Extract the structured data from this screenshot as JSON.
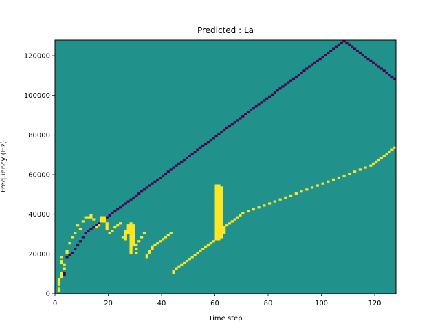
{
  "chart_data": {
    "type": "heatmap",
    "title": "Predicted : La",
    "xlabel": "Time step",
    "ylabel": "Frequency (Hz)",
    "xlim": [
      0,
      128
    ],
    "ylim": [
      0,
      128000
    ],
    "xticks": [
      0,
      20,
      40,
      60,
      80,
      100,
      120
    ],
    "yticks": [
      0,
      20000,
      40000,
      60000,
      80000,
      100000,
      120000
    ],
    "colors": {
      "background": "#21918c",
      "high": "#fde725",
      "low": "#440154"
    },
    "high_cells": [
      [
        1,
        1
      ],
      [
        1,
        2
      ],
      [
        1,
        4
      ],
      [
        1,
        5
      ],
      [
        1,
        6
      ],
      [
        1,
        7
      ],
      [
        2,
        8
      ],
      [
        2,
        9
      ],
      [
        2,
        10
      ],
      [
        2,
        15
      ],
      [
        2,
        16
      ],
      [
        2,
        18
      ],
      [
        3,
        12
      ],
      [
        3,
        14
      ],
      [
        4,
        20
      ],
      [
        4,
        21
      ],
      [
        5,
        25
      ],
      [
        6,
        28
      ],
      [
        7,
        30
      ],
      [
        8,
        34
      ],
      [
        9,
        32
      ],
      [
        10,
        36
      ],
      [
        11,
        38
      ],
      [
        12,
        38
      ],
      [
        13,
        38
      ],
      [
        13,
        39
      ],
      [
        14,
        37
      ],
      [
        15,
        33
      ],
      [
        16,
        34
      ],
      [
        17,
        36
      ],
      [
        17,
        37
      ],
      [
        17,
        38
      ],
      [
        18,
        36
      ],
      [
        18,
        37
      ],
      [
        18,
        38
      ],
      [
        19,
        32
      ],
      [
        19,
        33
      ],
      [
        19,
        34
      ],
      [
        19,
        35
      ],
      [
        20,
        30
      ],
      [
        21,
        31
      ],
      [
        22,
        33
      ],
      [
        23,
        34
      ],
      [
        24,
        35
      ],
      [
        25,
        28
      ],
      [
        26,
        27
      ],
      [
        26,
        28
      ],
      [
        26,
        29
      ],
      [
        26,
        30
      ],
      [
        26,
        31
      ],
      [
        27,
        30
      ],
      [
        27,
        31
      ],
      [
        27,
        32
      ],
      [
        27,
        33
      ],
      [
        27,
        34
      ],
      [
        28,
        20
      ],
      [
        28,
        21
      ],
      [
        28,
        22
      ],
      [
        28,
        23
      ],
      [
        28,
        24
      ],
      [
        28,
        25
      ],
      [
        28,
        26
      ],
      [
        28,
        27
      ],
      [
        28,
        28
      ],
      [
        28,
        29
      ],
      [
        28,
        30
      ],
      [
        28,
        31
      ],
      [
        28,
        32
      ],
      [
        28,
        33
      ],
      [
        28,
        34
      ],
      [
        28,
        35
      ],
      [
        29,
        24
      ],
      [
        29,
        25
      ],
      [
        29,
        26
      ],
      [
        29,
        27
      ],
      [
        29,
        28
      ],
      [
        29,
        29
      ],
      [
        29,
        30
      ],
      [
        29,
        31
      ],
      [
        29,
        32
      ],
      [
        29,
        33
      ],
      [
        29,
        34
      ],
      [
        30,
        20
      ],
      [
        30,
        22
      ],
      [
        30,
        24
      ],
      [
        31,
        26
      ],
      [
        32,
        28
      ],
      [
        33,
        30
      ],
      [
        34,
        18
      ],
      [
        34,
        19
      ],
      [
        35,
        20
      ],
      [
        35,
        21
      ],
      [
        36,
        22
      ],
      [
        36,
        23
      ],
      [
        37,
        24
      ],
      [
        38,
        25
      ],
      [
        39,
        26
      ],
      [
        40,
        27
      ],
      [
        41,
        28
      ],
      [
        42,
        29
      ],
      [
        43,
        30
      ],
      [
        44,
        10
      ],
      [
        44,
        11
      ],
      [
        45,
        12
      ],
      [
        46,
        13
      ],
      [
        47,
        14
      ],
      [
        48,
        15
      ],
      [
        49,
        16
      ],
      [
        50,
        17
      ],
      [
        51,
        18
      ],
      [
        52,
        19
      ],
      [
        53,
        20
      ],
      [
        54,
        21
      ],
      [
        55,
        22
      ],
      [
        56,
        23
      ],
      [
        57,
        24
      ],
      [
        58,
        25
      ],
      [
        59,
        26
      ],
      [
        60,
        27
      ],
      [
        60,
        28
      ],
      [
        60,
        29
      ],
      [
        60,
        30
      ],
      [
        60,
        31
      ],
      [
        60,
        32
      ],
      [
        60,
        33
      ],
      [
        60,
        34
      ],
      [
        60,
        35
      ],
      [
        60,
        36
      ],
      [
        60,
        37
      ],
      [
        60,
        38
      ],
      [
        60,
        39
      ],
      [
        60,
        40
      ],
      [
        60,
        41
      ],
      [
        60,
        42
      ],
      [
        60,
        43
      ],
      [
        60,
        44
      ],
      [
        60,
        45
      ],
      [
        60,
        46
      ],
      [
        60,
        47
      ],
      [
        60,
        48
      ],
      [
        60,
        49
      ],
      [
        60,
        50
      ],
      [
        60,
        51
      ],
      [
        60,
        52
      ],
      [
        60,
        53
      ],
      [
        60,
        54
      ],
      [
        61,
        27
      ],
      [
        61,
        28
      ],
      [
        61,
        29
      ],
      [
        61,
        30
      ],
      [
        61,
        31
      ],
      [
        61,
        32
      ],
      [
        61,
        33
      ],
      [
        61,
        34
      ],
      [
        61,
        35
      ],
      [
        61,
        36
      ],
      [
        61,
        37
      ],
      [
        61,
        38
      ],
      [
        61,
        39
      ],
      [
        61,
        40
      ],
      [
        61,
        41
      ],
      [
        61,
        42
      ],
      [
        61,
        43
      ],
      [
        61,
        44
      ],
      [
        61,
        45
      ],
      [
        61,
        46
      ],
      [
        61,
        47
      ],
      [
        61,
        48
      ],
      [
        61,
        49
      ],
      [
        61,
        50
      ],
      [
        61,
        51
      ],
      [
        61,
        52
      ],
      [
        61,
        53
      ],
      [
        61,
        54
      ],
      [
        62,
        28
      ],
      [
        62,
        29
      ],
      [
        62,
        30
      ],
      [
        62,
        31
      ],
      [
        62,
        32
      ],
      [
        62,
        33
      ],
      [
        62,
        34
      ],
      [
        62,
        35
      ],
      [
        62,
        36
      ],
      [
        62,
        37
      ],
      [
        62,
        38
      ],
      [
        62,
        39
      ],
      [
        62,
        40
      ],
      [
        62,
        41
      ],
      [
        62,
        42
      ],
      [
        62,
        43
      ],
      [
        62,
        44
      ],
      [
        62,
        45
      ],
      [
        62,
        46
      ],
      [
        62,
        47
      ],
      [
        62,
        48
      ],
      [
        62,
        49
      ],
      [
        62,
        50
      ],
      [
        62,
        51
      ],
      [
        62,
        52
      ],
      [
        62,
        53
      ],
      [
        63,
        30
      ],
      [
        63,
        31
      ],
      [
        63,
        32
      ],
      [
        63,
        33
      ],
      [
        64,
        34
      ],
      [
        65,
        35
      ],
      [
        66,
        36
      ],
      [
        67,
        37
      ],
      [
        68,
        38
      ],
      [
        69,
        39
      ],
      [
        70,
        40
      ],
      [
        72,
        41
      ],
      [
        74,
        42
      ],
      [
        76,
        43
      ],
      [
        78,
        44
      ],
      [
        80,
        45
      ],
      [
        82,
        46
      ],
      [
        84,
        47
      ],
      [
        86,
        48
      ],
      [
        88,
        49
      ],
      [
        90,
        50
      ],
      [
        92,
        51
      ],
      [
        94,
        52
      ],
      [
        96,
        53
      ],
      [
        98,
        54
      ],
      [
        100,
        55
      ],
      [
        102,
        56
      ],
      [
        104,
        57
      ],
      [
        106,
        58
      ],
      [
        108,
        59
      ],
      [
        110,
        60
      ],
      [
        112,
        61
      ],
      [
        114,
        62
      ],
      [
        116,
        63
      ],
      [
        118,
        64
      ],
      [
        119,
        65
      ],
      [
        120,
        66
      ],
      [
        121,
        67
      ],
      [
        122,
        68
      ],
      [
        123,
        69
      ],
      [
        124,
        70
      ],
      [
        125,
        71
      ],
      [
        126,
        72
      ],
      [
        127,
        73
      ]
    ],
    "low_cells": [
      [
        3,
        9
      ],
      [
        3,
        10
      ],
      [
        4,
        18
      ],
      [
        5,
        19
      ],
      [
        6,
        20
      ],
      [
        7,
        22
      ],
      [
        8,
        24
      ],
      [
        9,
        26
      ],
      [
        10,
        28
      ],
      [
        11,
        30
      ],
      [
        12,
        31
      ],
      [
        13,
        32
      ],
      [
        14,
        33
      ],
      [
        15,
        34
      ],
      [
        16,
        35
      ],
      [
        17,
        36
      ],
      [
        18,
        37
      ],
      [
        19,
        38
      ],
      [
        20,
        39
      ],
      [
        21,
        40
      ],
      [
        22,
        41
      ],
      [
        23,
        42
      ],
      [
        24,
        43
      ],
      [
        25,
        44
      ],
      [
        26,
        45
      ],
      [
        27,
        46
      ],
      [
        28,
        47
      ],
      [
        29,
        48
      ],
      [
        30,
        49
      ],
      [
        31,
        50
      ],
      [
        32,
        51
      ],
      [
        33,
        52
      ],
      [
        34,
        53
      ],
      [
        35,
        54
      ],
      [
        36,
        55
      ],
      [
        37,
        56
      ],
      [
        38,
        57
      ],
      [
        39,
        58
      ],
      [
        40,
        59
      ],
      [
        41,
        60
      ],
      [
        42,
        61
      ],
      [
        43,
        62
      ],
      [
        44,
        63
      ],
      [
        45,
        64
      ],
      [
        46,
        65
      ],
      [
        47,
        66
      ],
      [
        48,
        67
      ],
      [
        49,
        68
      ],
      [
        50,
        69
      ],
      [
        51,
        70
      ],
      [
        52,
        71
      ],
      [
        53,
        72
      ],
      [
        54,
        73
      ],
      [
        55,
        74
      ],
      [
        56,
        75
      ],
      [
        57,
        76
      ],
      [
        58,
        77
      ],
      [
        59,
        78
      ],
      [
        60,
        79
      ],
      [
        61,
        80
      ],
      [
        62,
        81
      ],
      [
        63,
        82
      ],
      [
        64,
        83
      ],
      [
        65,
        84
      ],
      [
        66,
        85
      ],
      [
        67,
        86
      ],
      [
        68,
        87
      ],
      [
        69,
        88
      ],
      [
        70,
        89
      ],
      [
        71,
        90
      ],
      [
        72,
        91
      ],
      [
        73,
        92
      ],
      [
        74,
        93
      ],
      [
        75,
        94
      ],
      [
        76,
        95
      ],
      [
        77,
        96
      ],
      [
        78,
        97
      ],
      [
        79,
        98
      ],
      [
        80,
        99
      ],
      [
        81,
        100
      ],
      [
        82,
        101
      ],
      [
        83,
        102
      ],
      [
        84,
        103
      ],
      [
        85,
        104
      ],
      [
        86,
        105
      ],
      [
        87,
        106
      ],
      [
        88,
        107
      ],
      [
        89,
        108
      ],
      [
        90,
        109
      ],
      [
        91,
        110
      ],
      [
        92,
        111
      ],
      [
        93,
        112
      ],
      [
        94,
        113
      ],
      [
        95,
        114
      ],
      [
        96,
        115
      ],
      [
        97,
        116
      ],
      [
        98,
        117
      ],
      [
        99,
        118
      ],
      [
        100,
        119
      ],
      [
        101,
        120
      ],
      [
        102,
        121
      ],
      [
        103,
        122
      ],
      [
        104,
        123
      ],
      [
        105,
        124
      ],
      [
        106,
        125
      ],
      [
        107,
        126
      ],
      [
        108,
        127
      ],
      [
        109,
        126
      ],
      [
        110,
        125
      ],
      [
        111,
        124
      ],
      [
        112,
        123
      ],
      [
        113,
        122
      ],
      [
        114,
        121
      ],
      [
        115,
        120
      ],
      [
        116,
        119
      ],
      [
        117,
        118
      ],
      [
        118,
        117
      ],
      [
        119,
        116
      ],
      [
        120,
        115
      ],
      [
        121,
        114
      ],
      [
        122,
        113
      ],
      [
        123,
        112
      ],
      [
        124,
        111
      ],
      [
        125,
        110
      ],
      [
        126,
        109
      ],
      [
        127,
        108
      ]
    ]
  }
}
